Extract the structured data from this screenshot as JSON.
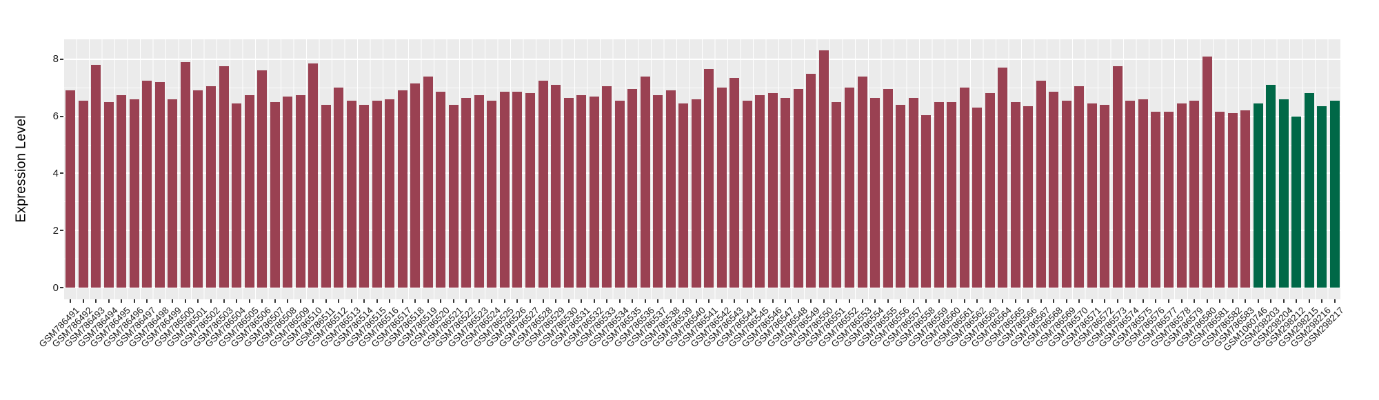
{
  "chart_data": {
    "type": "bar",
    "title": "",
    "xlabel": "",
    "ylabel": "Expression Level",
    "ylim": [
      0,
      8.7
    ],
    "yticks": [
      0,
      2,
      4,
      6,
      8
    ],
    "ytick_labels": [
      "0",
      "2",
      "4",
      "6",
      "8"
    ],
    "grid": "on",
    "legend": "none",
    "panel_background": "#ebebeb",
    "gridline_color": "#ffffff",
    "tick_color": "#333333",
    "text_color": "#1a1a1a",
    "bar_color_main": "#9a4152",
    "bar_color_highlight": "#006847",
    "highlight_start_index": 93,
    "categories": [
      "GSM786491",
      "GSM786492",
      "GSM786493",
      "GSM786494",
      "GSM786495",
      "GSM786496",
      "GSM786497",
      "GSM786498",
      "GSM786499",
      "GSM786500",
      "GSM786501",
      "GSM786502",
      "GSM786503",
      "GSM786504",
      "GSM786505",
      "GSM786506",
      "GSM786507",
      "GSM786508",
      "GSM786509",
      "GSM786510",
      "GSM786511",
      "GSM786512",
      "GSM786513",
      "GSM786514",
      "GSM786515",
      "GSM786516",
      "GSM786517",
      "GSM786518",
      "GSM786519",
      "GSM786520",
      "GSM786521",
      "GSM786522",
      "GSM786523",
      "GSM786524",
      "GSM786525",
      "GSM786526",
      "GSM786527",
      "GSM786528",
      "GSM786529",
      "GSM786530",
      "GSM786531",
      "GSM786532",
      "GSM786533",
      "GSM786534",
      "GSM786535",
      "GSM786536",
      "GSM786537",
      "GSM786538",
      "GSM786539",
      "GSM786540",
      "GSM786541",
      "GSM786542",
      "GSM786543",
      "GSM786544",
      "GSM786545",
      "GSM786546",
      "GSM786547",
      "GSM786548",
      "GSM786549",
      "GSM786550",
      "GSM786551",
      "GSM786552",
      "GSM786553",
      "GSM786554",
      "GSM786555",
      "GSM786556",
      "GSM786557",
      "GSM786558",
      "GSM786559",
      "GSM786560",
      "GSM786561",
      "GSM786562",
      "GSM786563",
      "GSM786564",
      "GSM786565",
      "GSM786566",
      "GSM786567",
      "GSM786568",
      "GSM786569",
      "GSM786570",
      "GSM786571",
      "GSM786572",
      "GSM786573",
      "GSM786574",
      "GSM786575",
      "GSM786576",
      "GSM786577",
      "GSM786578",
      "GSM786579",
      "GSM786580",
      "GSM786581",
      "GSM786582",
      "GSM786583",
      "GSM1060746",
      "GSM298203",
      "GSM298204",
      "GSM298212",
      "GSM298215",
      "GSM298216",
      "GSM298217"
    ],
    "values": [
      6.9,
      6.55,
      7.8,
      6.5,
      6.75,
      6.6,
      7.25,
      7.2,
      6.6,
      7.9,
      6.9,
      7.05,
      7.75,
      6.45,
      6.75,
      7.6,
      6.5,
      6.7,
      6.75,
      7.85,
      6.4,
      7.0,
      6.55,
      6.4,
      6.55,
      6.6,
      6.9,
      7.15,
      7.4,
      6.85,
      6.4,
      6.65,
      6.75,
      6.55,
      6.85,
      6.85,
      6.8,
      7.25,
      7.1,
      6.65,
      6.75,
      6.7,
      7.05,
      6.55,
      6.95,
      7.4,
      6.75,
      6.9,
      6.45,
      6.6,
      7.65,
      7.0,
      7.35,
      6.55,
      6.75,
      6.8,
      6.65,
      6.95,
      7.5,
      8.3,
      6.5,
      7.0,
      7.4,
      6.65,
      6.95,
      6.4,
      6.65,
      6.05,
      6.5,
      6.5,
      7.0,
      6.3,
      6.8,
      7.7,
      6.5,
      6.35,
      7.25,
      6.85,
      6.55,
      7.05,
      6.45,
      6.4,
      7.75,
      6.55,
      6.6,
      6.15,
      6.15,
      6.45,
      6.55,
      8.1,
      6.15,
      6.1,
      6.2,
      6.45,
      7.1,
      6.6,
      6.0,
      6.8,
      6.35,
      6.55
    ]
  }
}
